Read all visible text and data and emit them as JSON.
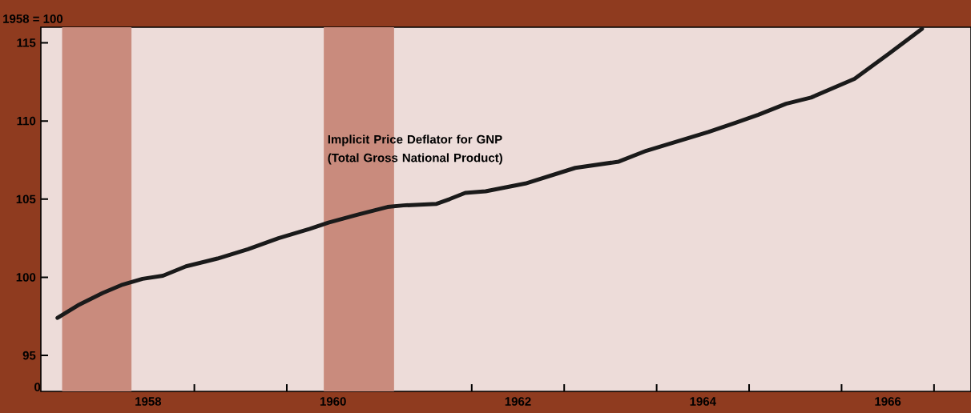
{
  "chart_data": {
    "type": "line",
    "ylabel": "1958 = 100",
    "series": [
      {
        "name": "Implicit Price Deflator for GNP (Total Gross National Product)",
        "color": "#1a1a1a",
        "x": [
          1957.52,
          1957.74,
          1958.01,
          1958.21,
          1958.44,
          1958.66,
          1958.91,
          1959.25,
          1959.58,
          1959.91,
          1960.25,
          1960.45,
          1960.76,
          1961.09,
          1961.26,
          1961.62,
          1961.76,
          1961.93,
          1962.15,
          1962.58,
          1963.12,
          1963.59,
          1963.89,
          1964.56,
          1964.86,
          1965.1,
          1965.4,
          1965.67,
          1966.14,
          1966.51,
          1966.87
        ],
        "values": [
          97.4,
          98.2,
          99.0,
          99.5,
          99.9,
          100.1,
          100.7,
          101.2,
          101.8,
          102.5,
          103.1,
          103.5,
          104.0,
          104.5,
          104.6,
          104.7,
          105.0,
          105.4,
          105.5,
          106.0,
          107.0,
          107.4,
          108.1,
          109.3,
          109.9,
          110.4,
          111.1,
          111.5,
          112.7,
          114.3,
          115.9
        ]
      }
    ],
    "xlim": [
      1957.34,
      1967.4
    ],
    "ylim": [
      92.7,
      116.0
    ],
    "xticks": [
      {
        "value": 1958,
        "label": null
      },
      {
        "value": 1959,
        "label": null
      },
      {
        "value": 1960,
        "label": null
      },
      {
        "value": 1961,
        "label": null
      },
      {
        "value": 1962,
        "label": null
      },
      {
        "value": 1963,
        "label": null
      },
      {
        "value": 1964,
        "label": null
      },
      {
        "value": 1965,
        "label": null
      },
      {
        "value": 1966,
        "label": null
      },
      {
        "value": 1967,
        "label": null
      },
      {
        "value": 1958.5,
        "label": "1958"
      },
      {
        "value": 1960.5,
        "label": "1960"
      },
      {
        "value": 1962.5,
        "label": "1962"
      },
      {
        "value": 1964.5,
        "label": "1964"
      },
      {
        "value": 1966.5,
        "label": "1966"
      }
    ],
    "yticks": [
      95,
      100,
      105,
      110,
      115
    ],
    "annotations": [
      "0"
    ],
    "bands": [
      {
        "axis": "x",
        "from": 1957.57,
        "to": 1958.32,
        "color": "#c98b7d"
      },
      {
        "axis": "x",
        "from": 1960.4,
        "to": 1961.16,
        "color": "#c98b7d"
      }
    ]
  }
}
